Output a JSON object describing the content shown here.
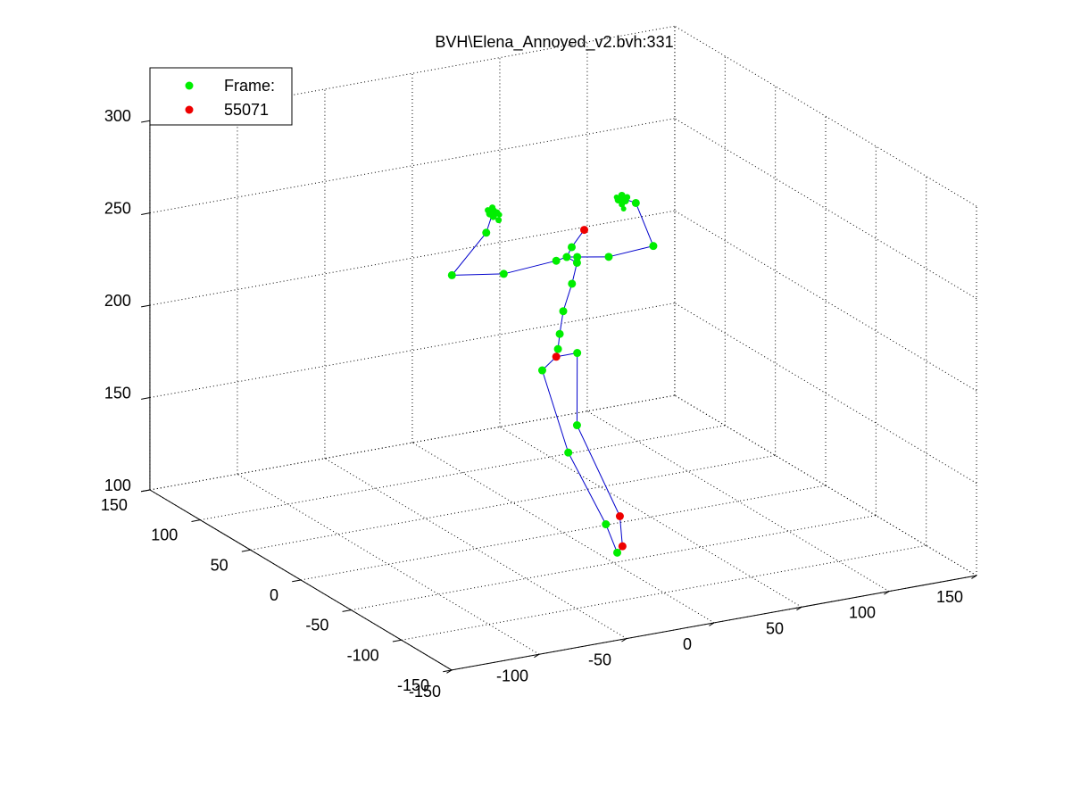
{
  "chart_data": {
    "type": "scatter",
    "title": "BVH\\Elena_Annoyed_v2.bvh:331",
    "xlabel": "",
    "ylabel": "",
    "zlabel": "",
    "xlim": [
      -150,
      150
    ],
    "ylim": [
      -150,
      150
    ],
    "zlim": [
      100,
      300
    ],
    "x_ticks": [
      "-150",
      "-100",
      "-50",
      "0",
      "50",
      "100",
      "150"
    ],
    "y_ticks": [
      "-150",
      "-100",
      "-50",
      "0",
      "50",
      "100",
      "150"
    ],
    "z_ticks": [
      "100",
      "150",
      "200",
      "250",
      "300"
    ],
    "grid": true,
    "legend_position": "top-left",
    "legend": [
      {
        "label": "Frame:",
        "color": "#00ee00"
      },
      {
        "label": "55071",
        "color": "#ee0000"
      }
    ],
    "bone_color": "#0000cc",
    "series": [
      {
        "name": "Frame:",
        "color": "#00ee00",
        "points": [
          {
            "id": "head",
            "x": 6,
            "y": 2,
            "z": 253
          },
          {
            "id": "neck",
            "x": 2,
            "y": 0,
            "z": 249
          },
          {
            "id": "neck2",
            "x": 5,
            "y": -5,
            "z": 247
          },
          {
            "id": "lclav",
            "x": -4,
            "y": 0,
            "z": 248
          },
          {
            "id": "rclav",
            "x": 8,
            "y": 0,
            "z": 248
          },
          {
            "id": "lshoulder",
            "x": -34,
            "y": 0,
            "z": 246
          },
          {
            "id": "lelbow",
            "x": -55,
            "y": 15,
            "z": 244
          },
          {
            "id": "lwrist",
            "x": -44,
            "y": 0,
            "z": 270
          },
          {
            "id": "lhand",
            "x": -40,
            "y": 0,
            "z": 281
          },
          {
            "id": "rshoulder",
            "x": 26,
            "y": 0,
            "z": 245
          },
          {
            "id": "relbow",
            "x": 40,
            "y": -20,
            "z": 255
          },
          {
            "id": "rwrist",
            "x": 30,
            "y": -20,
            "z": 280
          },
          {
            "id": "rhand",
            "x": 22,
            "y": -20,
            "z": 284
          },
          {
            "id": "spine4",
            "x": 5,
            "y": 0,
            "z": 234
          },
          {
            "id": "spine3",
            "x": 0,
            "y": 0,
            "z": 220
          },
          {
            "id": "spine2",
            "x": -2,
            "y": 0,
            "z": 208
          },
          {
            "id": "spine1",
            "x": -3,
            "y": 0,
            "z": 200
          },
          {
            "id": "lhip",
            "x": -12,
            "y": 0,
            "z": 190
          },
          {
            "id": "rhip",
            "x": 8,
            "y": 0,
            "z": 196
          },
          {
            "id": "lknee",
            "x": -4,
            "y": -12,
            "z": 148
          },
          {
            "id": "rknee",
            "x": 5,
            "y": -5,
            "z": 159
          },
          {
            "id": "lankle",
            "x": 10,
            "y": -25,
            "z": 111
          },
          {
            "id": "ltoe",
            "x": 5,
            "y": -45,
            "z": 103
          }
        ]
      },
      {
        "name": "55071",
        "color": "#ee0000",
        "points": [
          {
            "id": "headtop",
            "x": 12,
            "y": 0,
            "z": 262
          },
          {
            "id": "hips",
            "x": -4,
            "y": 0,
            "z": 196
          },
          {
            "id": "rankle",
            "x": 18,
            "y": -25,
            "z": 114
          },
          {
            "id": "lfoot",
            "x": 12,
            "y": -38,
            "z": 103
          }
        ]
      }
    ],
    "bones": [
      [
        "lhand",
        "lwrist"
      ],
      [
        "lwrist",
        "lelbow"
      ],
      [
        "lelbow",
        "lshoulder"
      ],
      [
        "lshoulder",
        "lclav"
      ],
      [
        "lclav",
        "neck"
      ],
      [
        "neck",
        "rclav"
      ],
      [
        "rclav",
        "rshoulder"
      ],
      [
        "rshoulder",
        "relbow"
      ],
      [
        "relbow",
        "rwrist"
      ],
      [
        "rwrist",
        "rhand"
      ],
      [
        "neck",
        "head"
      ],
      [
        "head",
        "headtop"
      ],
      [
        "neck",
        "neck2"
      ],
      [
        "neck2",
        "spine4"
      ],
      [
        "spine4",
        "spine3"
      ],
      [
        "spine3",
        "spine2"
      ],
      [
        "spine2",
        "spine1"
      ],
      [
        "spine1",
        "hips"
      ],
      [
        "hips",
        "lhip"
      ],
      [
        "hips",
        "rhip"
      ],
      [
        "lhip",
        "lknee"
      ],
      [
        "lknee",
        "lankle"
      ],
      [
        "lankle",
        "ltoe"
      ],
      [
        "rhip",
        "rknee"
      ],
      [
        "rknee",
        "rankle"
      ],
      [
        "rankle",
        "lfoot"
      ],
      [
        "lfoot",
        "ltoe"
      ]
    ]
  }
}
